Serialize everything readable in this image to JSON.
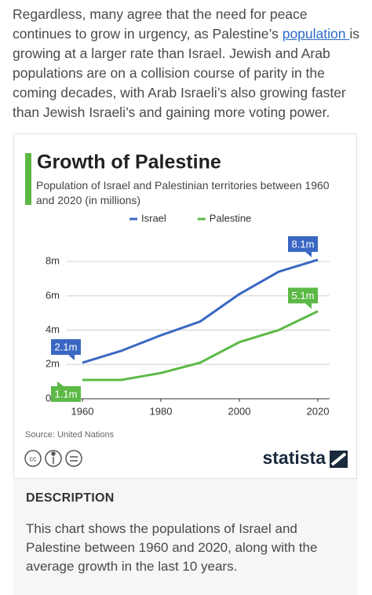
{
  "article": {
    "paragraph": [
      "Regardless, many agree that the need for peace continues to grow in urgency, as Palestine’s ",
      "population ",
      "is growing at a larger rate than Israel. Jewish and Arab populations are on a collision course of parity in the coming decades, with Arab Israeli’s also growing faster than Jewish Israeli’s and gaining more voting power."
    ]
  },
  "chart_data": {
    "type": "line",
    "title": "Growth of Palestine",
    "subtitle": "Population of Israel and Palestinian territories between 1960 and 2020 (in millions)",
    "x": [
      1960,
      1970,
      1980,
      1990,
      2000,
      2010,
      2020
    ],
    "series": [
      {
        "name": "Israel",
        "color": "#3a67c2",
        "values": [
          2.1,
          2.8,
          3.7,
          4.5,
          6.1,
          7.4,
          8.1
        ],
        "value_labels": [
          "2.1m",
          null,
          null,
          null,
          null,
          null,
          "8.1m"
        ]
      },
      {
        "name": "Palestine",
        "color": "#5cb946",
        "values": [
          1.1,
          1.1,
          1.5,
          2.1,
          3.3,
          4.0,
          5.1
        ],
        "value_labels": [
          "1.1m",
          null,
          null,
          null,
          null,
          null,
          "5.1m"
        ]
      }
    ],
    "xlim": [
      1956,
      2023
    ],
    "xticks": [
      1960,
      1980,
      2000,
      2020
    ],
    "ylim": [
      0,
      8.6
    ],
    "yticks": [
      {
        "value": 0,
        "label": "0m"
      },
      {
        "value": 2,
        "label": "2m"
      },
      {
        "value": 4,
        "label": "4m"
      },
      {
        "value": 6,
        "label": "6m"
      },
      {
        "value": 8,
        "label": "8m"
      }
    ],
    "grid": true,
    "legend": "top",
    "source": "Source: United Nations",
    "brand": "statista"
  },
  "description": {
    "heading": "DESCRIPTION",
    "text": "This chart shows the populations of Israel and Palestine between 1960 and 2020, along with the average growth in the last 10 years."
  }
}
